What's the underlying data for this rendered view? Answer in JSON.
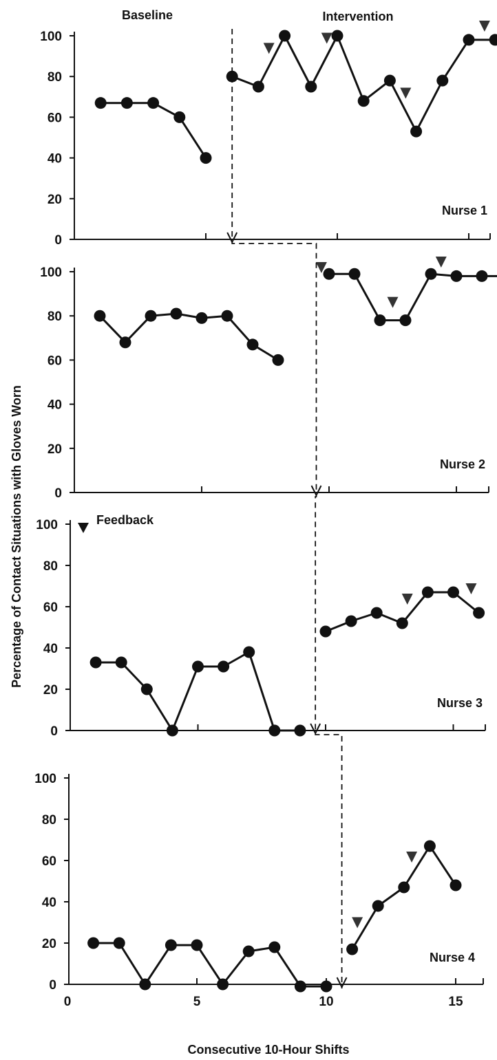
{
  "chart_data": {
    "type": "line",
    "title": "",
    "xlabel": "Consecutive 10-Hour Shifts",
    "ylabel": "Percentage of Contact Situations with Gloves Worn",
    "ylim": [
      0,
      100
    ],
    "xlim": [
      0,
      16
    ],
    "x_ticks": [
      "0",
      "5",
      "10",
      "15"
    ],
    "y_ticks": [
      "0",
      "20",
      "40",
      "60",
      "80",
      "100"
    ],
    "phase_labels": [
      "Baseline",
      "Intervention"
    ],
    "feedback_label": "Feedback",
    "feedback_marker": "downward arrowhead",
    "panels": [
      {
        "name": "Nurse 1",
        "phase_change_x": 6,
        "baseline": {
          "x": [
            1,
            2,
            3,
            4,
            5
          ],
          "y": [
            67,
            67,
            67,
            60,
            40
          ]
        },
        "intervention": {
          "x": [
            6,
            7,
            8,
            9,
            10,
            11,
            12,
            13,
            14,
            15,
            16
          ],
          "y": [
            80,
            75,
            100,
            75,
            100,
            68,
            78,
            53,
            78,
            98,
            98
          ]
        },
        "feedback_at_x": [
          7.4,
          9.6,
          12.6,
          15.6
        ]
      },
      {
        "name": "Nurse 2",
        "phase_change_x": 9.5,
        "baseline": {
          "x": [
            1,
            2,
            3,
            4,
            5,
            6,
            7,
            8
          ],
          "y": [
            80,
            68,
            80,
            81,
            79,
            80,
            67,
            60
          ]
        },
        "intervention": {
          "x": [
            10,
            11,
            12,
            13,
            14,
            15,
            16,
            17
          ],
          "y": [
            99,
            99,
            78,
            78,
            99,
            98,
            98,
            98
          ]
        },
        "feedback_at_x": [
          9.7,
          12.5,
          14.4
        ]
      },
      {
        "name": "Nurse 3",
        "phase_change_x": 9.6,
        "baseline": {
          "x": [
            1,
            2,
            3,
            4,
            5,
            6,
            7,
            8,
            9
          ],
          "y": [
            33,
            33,
            20,
            0,
            31,
            31,
            38,
            0,
            0
          ]
        },
        "intervention": {
          "x": [
            10,
            11,
            12,
            13,
            14,
            15,
            16
          ],
          "y": [
            48,
            53,
            57,
            52,
            67,
            67,
            57
          ]
        },
        "feedback_at_x": [
          13.2,
          15.7
        ]
      },
      {
        "name": "Nurse 4",
        "phase_change_x": 10.6,
        "baseline": {
          "x": [
            1,
            2,
            3,
            4,
            5,
            6,
            7,
            8,
            9,
            10
          ],
          "y": [
            20,
            20,
            0,
            19,
            19,
            0,
            16,
            18,
            -1,
            -1
          ]
        },
        "intervention": {
          "x": [
            11,
            12,
            13,
            14,
            15
          ],
          "y": [
            17,
            38,
            47,
            67,
            48
          ]
        },
        "feedback_at_x": [
          11.2,
          13.3
        ]
      }
    ]
  }
}
